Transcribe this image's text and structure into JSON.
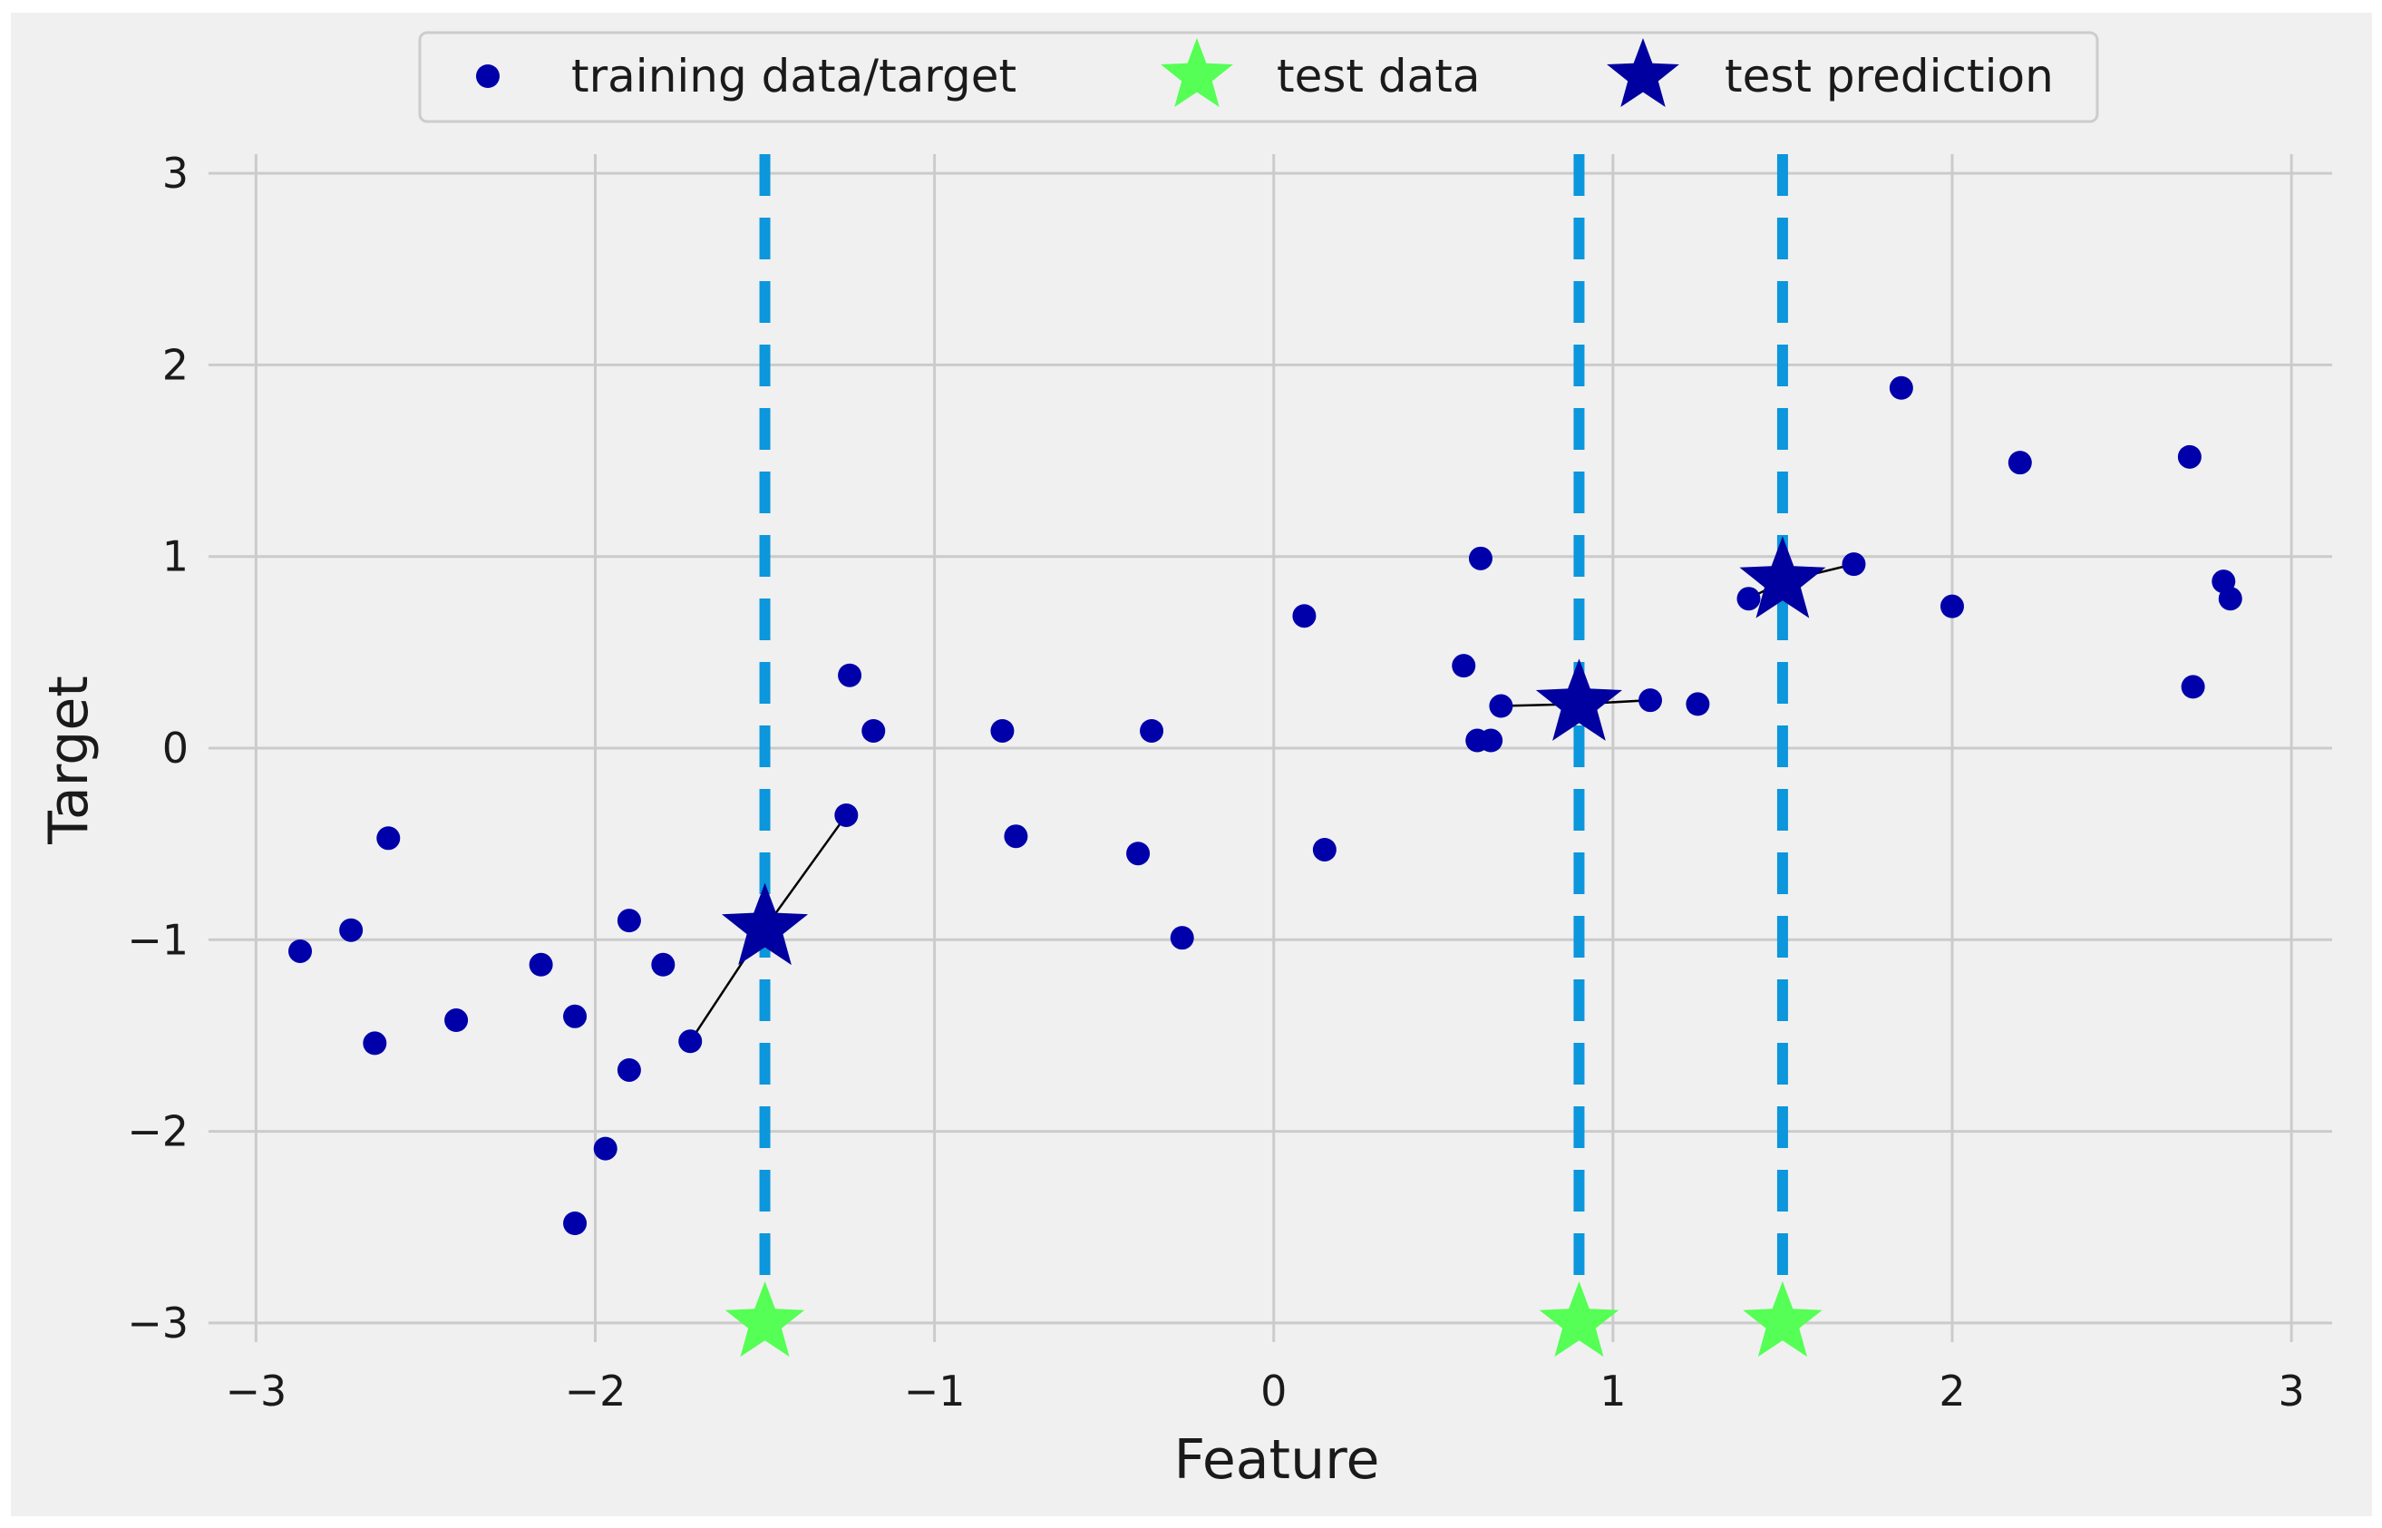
{
  "chart_data": {
    "type": "scatter",
    "title": "",
    "xlabel": "Feature",
    "ylabel": "Target",
    "xlim": [
      -3.14,
      3.12
    ],
    "ylim": [
      -3.1,
      3.1
    ],
    "xticks": [
      -3,
      -2,
      -1,
      0,
      1,
      2,
      3
    ],
    "yticks": [
      -3,
      -2,
      -1,
      0,
      1,
      2,
      3
    ],
    "xtick_labels": [
      "−3",
      "−2",
      "−1",
      "0",
      "1",
      "2",
      "3"
    ],
    "ytick_labels": [
      "−3",
      "−2",
      "−1",
      "0",
      "1",
      "2",
      "3"
    ],
    "grid": true,
    "background": "#f0f0f0",
    "legend_position": "top-center",
    "series": [
      {
        "name": "training data/target",
        "marker": "circle",
        "color": "#0000aa",
        "points": [
          [
            -2.87,
            -1.06
          ],
          [
            -2.72,
            -0.95
          ],
          [
            -2.65,
            -1.54
          ],
          [
            -2.61,
            -0.47
          ],
          [
            -2.41,
            -1.42
          ],
          [
            -2.16,
            -1.13
          ],
          [
            -2.06,
            -1.4
          ],
          [
            -2.06,
            -2.48
          ],
          [
            -1.97,
            -2.09
          ],
          [
            -1.9,
            -0.9
          ],
          [
            -1.9,
            -1.68
          ],
          [
            -1.8,
            -1.13
          ],
          [
            -1.72,
            -1.53
          ],
          [
            -1.25,
            0.38
          ],
          [
            -1.26,
            -0.35
          ],
          [
            -1.18,
            0.09
          ],
          [
            -0.8,
            0.09
          ],
          [
            -0.76,
            -0.46
          ],
          [
            -0.4,
            -0.55
          ],
          [
            -0.36,
            0.09
          ],
          [
            -0.27,
            -0.99
          ],
          [
            0.09,
            0.69
          ],
          [
            0.15,
            -0.53
          ],
          [
            0.56,
            0.43
          ],
          [
            0.6,
            0.04
          ],
          [
            0.61,
            0.99
          ],
          [
            0.64,
            0.04
          ],
          [
            0.67,
            0.22
          ],
          [
            1.11,
            0.25
          ],
          [
            1.25,
            0.23
          ],
          [
            1.4,
            0.78
          ],
          [
            1.71,
            0.96
          ],
          [
            1.85,
            1.88
          ],
          [
            2.0,
            0.74
          ],
          [
            2.2,
            1.49
          ],
          [
            2.7,
            1.52
          ],
          [
            2.71,
            0.32
          ],
          [
            2.8,
            0.87
          ],
          [
            2.82,
            0.78
          ]
        ]
      },
      {
        "name": "test data",
        "marker": "star",
        "color": "#55ff55",
        "points": [
          [
            -1.5,
            -3.0
          ],
          [
            0.9,
            -3.0
          ],
          [
            1.5,
            -3.0
          ]
        ]
      },
      {
        "name": "test prediction",
        "marker": "star",
        "color": "#0000a0",
        "points": [
          [
            -1.5,
            -0.94
          ],
          [
            0.9,
            0.23
          ],
          [
            1.5,
            0.87
          ]
        ]
      }
    ],
    "vlines": {
      "x": [
        -1.5,
        0.9,
        1.5
      ],
      "color": "#0c96dc",
      "style": "dashed"
    },
    "neighbor_links": [
      {
        "from": [
          -1.5,
          -0.94
        ],
        "to": [
          -1.26,
          -0.35
        ]
      },
      {
        "from": [
          -1.5,
          -0.94
        ],
        "to": [
          -1.72,
          -1.53
        ]
      },
      {
        "from": [
          0.9,
          0.23
        ],
        "to": [
          0.67,
          0.22
        ]
      },
      {
        "from": [
          0.9,
          0.23
        ],
        "to": [
          1.11,
          0.25
        ]
      },
      {
        "from": [
          1.5,
          0.87
        ],
        "to": [
          1.71,
          0.96
        ]
      },
      {
        "from": [
          1.5,
          0.87
        ],
        "to": [
          1.4,
          0.78
        ]
      }
    ]
  }
}
